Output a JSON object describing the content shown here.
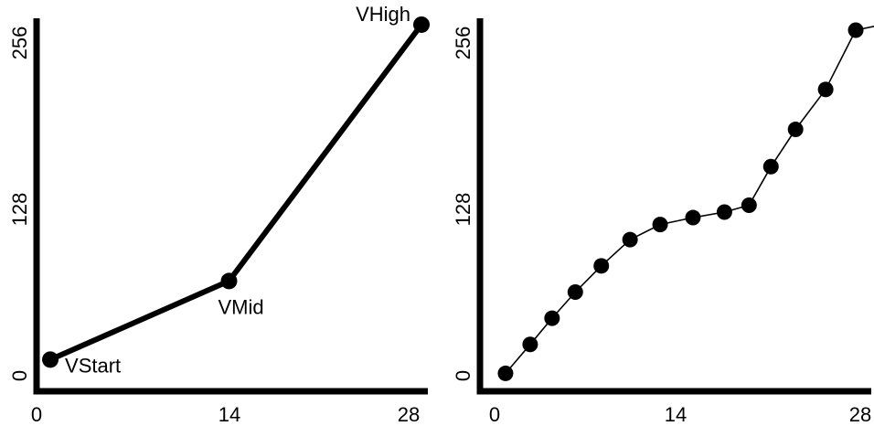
{
  "chart_data": [
    {
      "type": "line",
      "xlim": [
        0,
        28
      ],
      "ylim": [
        0,
        256
      ],
      "x_ticks": [
        "0",
        "14",
        "28"
      ],
      "y_ticks": [
        "0",
        "128",
        "256"
      ],
      "series": [
        {
          "x": [
            1,
            14,
            28
          ],
          "y": [
            19,
            76,
            262
          ]
        }
      ],
      "annotations": [
        {
          "label": "VStart",
          "x": 1,
          "y": 19
        },
        {
          "label": "VMid",
          "x": 14,
          "y": 76
        },
        {
          "label": "VHigh",
          "x": 28,
          "y": 262
        }
      ],
      "colors": {
        "line": "#000000",
        "marker": "#000000"
      }
    },
    {
      "type": "line",
      "xlim": [
        0,
        28
      ],
      "ylim": [
        0,
        256
      ],
      "x_ticks": [
        "0",
        "14",
        "28"
      ],
      "y_ticks": [
        "0",
        "128",
        "256"
      ],
      "series": [
        {
          "x": [
            1,
            2.8,
            4.4,
            6.1,
            8,
            10.1,
            12.3,
            14.7,
            17,
            18.8,
            20.4,
            22.2,
            24.4,
            26.6,
            28.5
          ],
          "y": [
            9,
            30,
            49,
            68,
            87,
            106,
            117,
            122,
            126,
            131,
            159,
            186,
            215,
            258,
            262
          ]
        }
      ],
      "colors": {
        "line": "#000000",
        "marker": "#000000"
      }
    }
  ]
}
